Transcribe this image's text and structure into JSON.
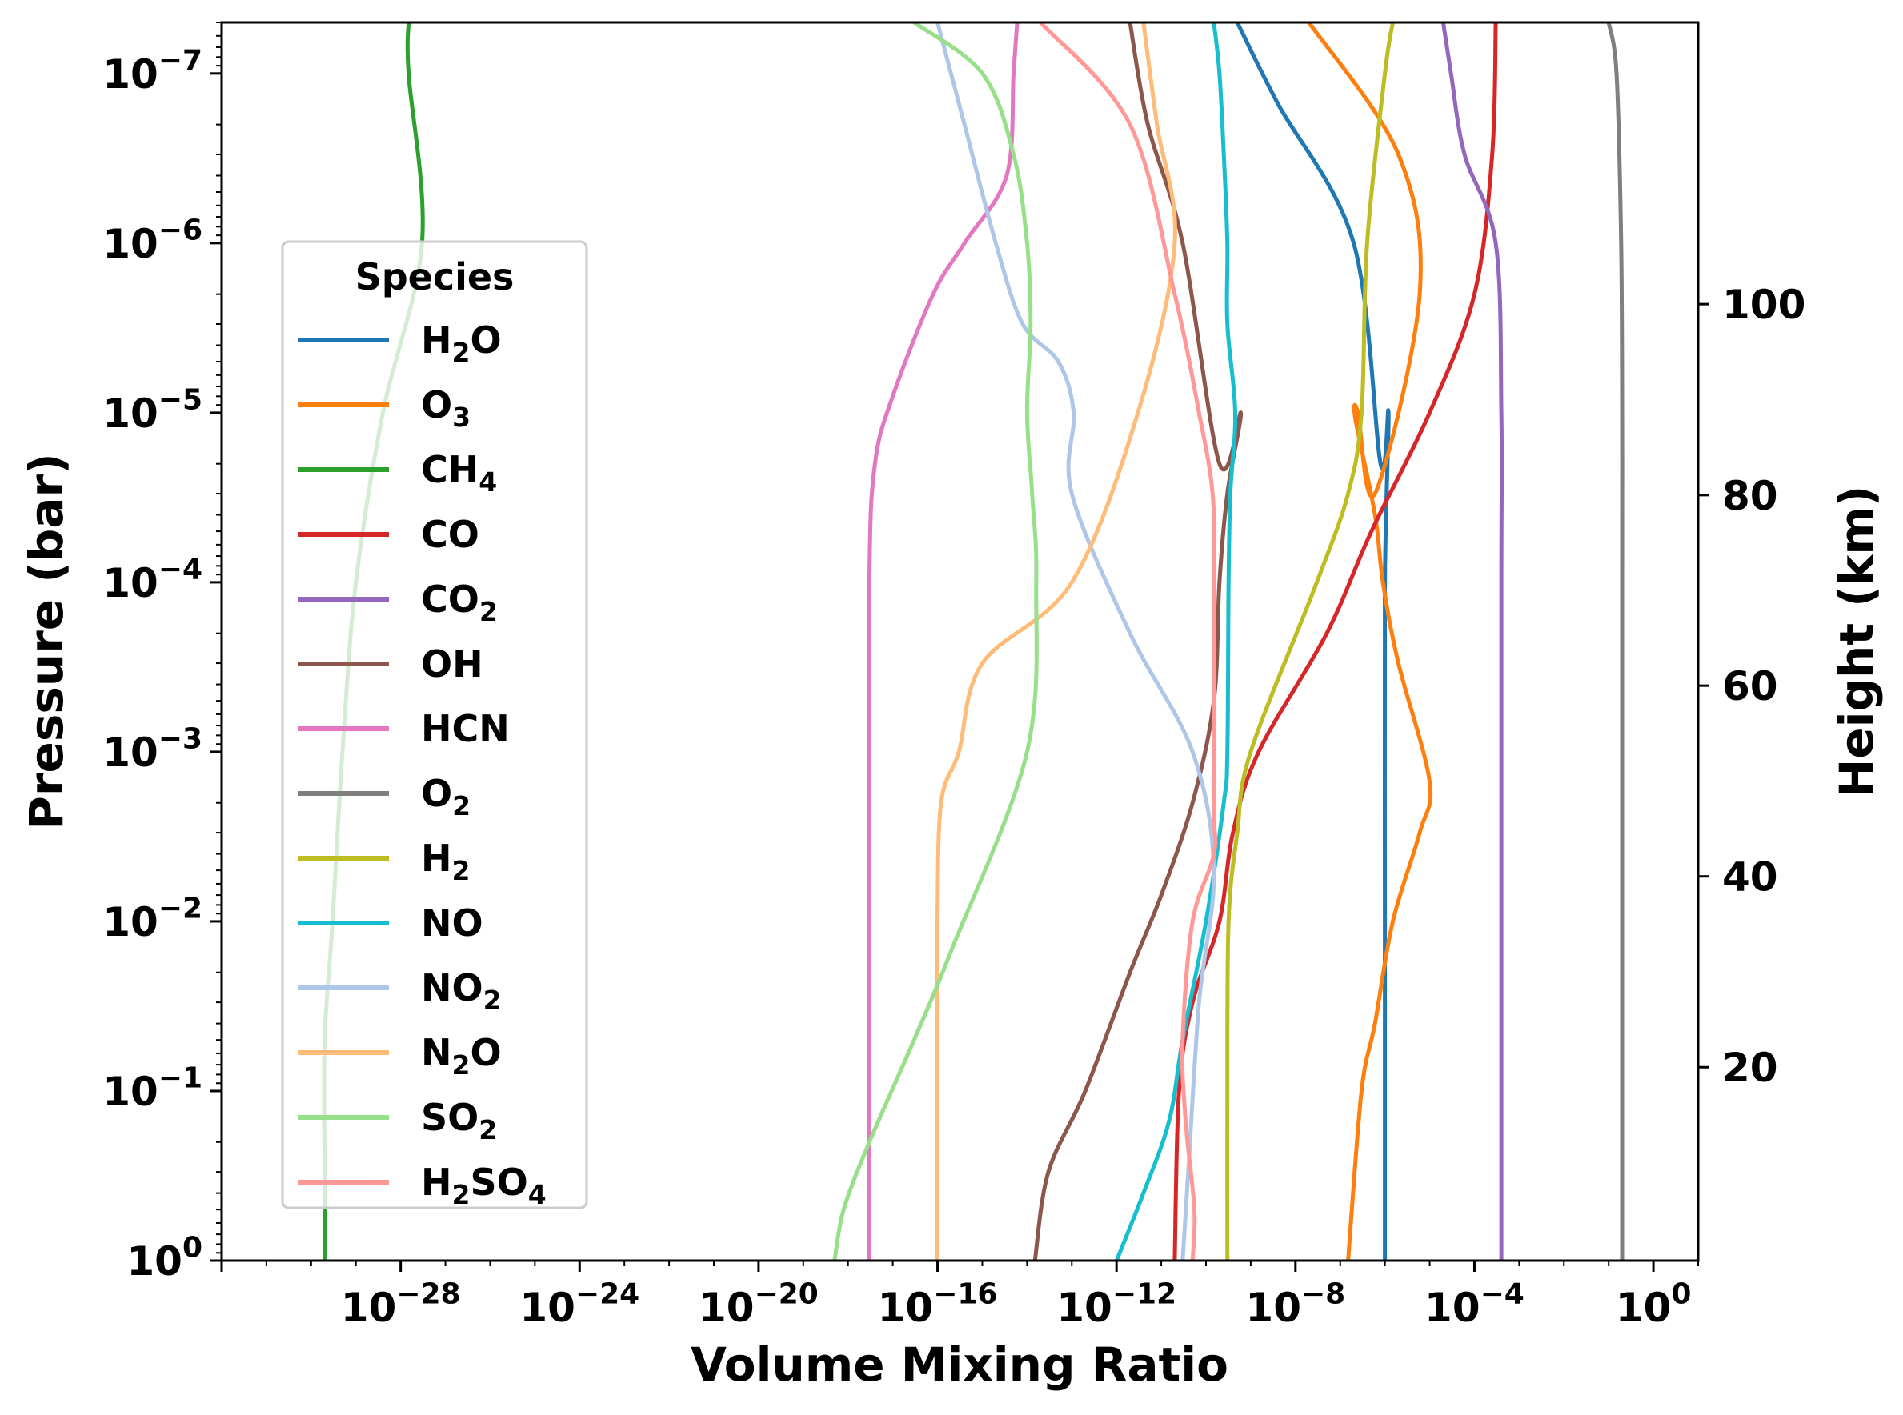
{
  "chart_data": {
    "type": "line",
    "xlabel": "Volume Mixing Ratio",
    "ylabel": "Pressure (bar)",
    "y2label": "Height (km)",
    "xscale": "log",
    "yscale": "log",
    "y_inverted": true,
    "xlim": [
      1e-32,
      10.0
    ],
    "ylim": [
      1,
      5e-08
    ],
    "x_ticks": [
      {
        "value": 1e-28,
        "base": "10",
        "exp": "−28"
      },
      {
        "value": 1e-24,
        "base": "10",
        "exp": "−24"
      },
      {
        "value": 1e-20,
        "base": "10",
        "exp": "−20"
      },
      {
        "value": 1e-16,
        "base": "10",
        "exp": "−16"
      },
      {
        "value": 1e-12,
        "base": "10",
        "exp": "−12"
      },
      {
        "value": 1e-08,
        "base": "10",
        "exp": "−8"
      },
      {
        "value": 0.0001,
        "base": "10",
        "exp": "−4"
      },
      {
        "value": 1,
        "base": "10",
        "exp": "0"
      }
    ],
    "y_ticks": [
      {
        "value": 1e-07,
        "base": "10",
        "exp": "−7"
      },
      {
        "value": 1e-06,
        "base": "10",
        "exp": "−6"
      },
      {
        "value": 1e-05,
        "base": "10",
        "exp": "−5"
      },
      {
        "value": 0.0001,
        "base": "10",
        "exp": "−4"
      },
      {
        "value": 0.001,
        "base": "10",
        "exp": "−3"
      },
      {
        "value": 0.01,
        "base": "10",
        "exp": "−2"
      },
      {
        "value": 0.1,
        "base": "10",
        "exp": "−1"
      },
      {
        "value": 1,
        "base": "10",
        "exp": "0"
      }
    ],
    "y2_ticks": [
      {
        "label": "20",
        "pressure": 0.0724
      },
      {
        "label": "40",
        "pressure": 0.00543
      },
      {
        "label": "60",
        "pressure": 0.000407
      },
      {
        "label": "80",
        "pressure": 3.06e-05
      },
      {
        "label": "100",
        "pressure": 2.29e-06
      }
    ],
    "legend": {
      "title": "Species",
      "placement": "center-left"
    },
    "grid": false,
    "series": [
      {
        "name": "H2O",
        "sub": "2",
        "label": [
          "H",
          "2",
          "O"
        ],
        "color": "#1f77b4",
        "points": [
          [
            1e-06,
            1
          ],
          [
            1e-06,
            0.01
          ],
          [
            1e-06,
            0.0001
          ],
          [
            1.2e-06,
            1e-05
          ],
          [
            8e-07,
            2e-05
          ],
          [
            2e-07,
            1e-06
          ],
          [
            4e-09,
            1.5e-07
          ],
          [
            5e-10,
            5e-08
          ]
        ]
      },
      {
        "name": "O3",
        "label": [
          "O",
          "3"
        ],
        "color": "#ff7f0e",
        "points": [
          [
            1.5e-07,
            1
          ],
          [
            3e-07,
            0.1
          ],
          [
            6e-07,
            0.04
          ],
          [
            1.5e-06,
            0.01
          ],
          [
            6e-06,
            0.003
          ],
          [
            1e-05,
            0.0015
          ],
          [
            2e-06,
            0.0003
          ],
          [
            9e-07,
            0.0001
          ],
          [
            6e-07,
            4e-05
          ],
          [
            2.2e-07,
            1.1e-05
          ],
          [
            2.5e-07,
            1e-05
          ],
          [
            6e-07,
            3e-05
          ],
          [
            6e-06,
            2e-06
          ],
          [
            2e-06,
            3e-07
          ],
          [
            2e-08,
            5e-08
          ]
        ]
      },
      {
        "name": "CH4",
        "label": [
          "CH",
          "4"
        ],
        "color": "#2ca02c",
        "points": [
          [
            2e-30,
            1
          ],
          [
            2e-30,
            0.3
          ],
          [
            2e-30,
            0.05
          ],
          [
            3e-30,
            0.01
          ],
          [
            5e-30,
            0.001
          ],
          [
            1e-29,
            0.0001
          ],
          [
            4e-29,
            1e-05
          ],
          [
            3e-28,
            1e-06
          ],
          [
            1.5e-28,
            1e-07
          ],
          [
            1.5e-28,
            5e-08
          ]
        ]
      },
      {
        "name": "CO",
        "label": [
          "CO"
        ],
        "color": "#d62728",
        "points": [
          [
            2e-11,
            1
          ],
          [
            2.5e-11,
            0.1
          ],
          [
            5e-11,
            0.03
          ],
          [
            2e-10,
            0.01
          ],
          [
            4e-10,
            0.003
          ],
          [
            1.5e-09,
            0.001
          ],
          [
            5e-08,
            0.0002
          ],
          [
            5e-07,
            5e-05
          ],
          [
            1e-05,
            1e-05
          ],
          [
            0.0001,
            2e-06
          ],
          [
            0.00025,
            3e-07
          ],
          [
            0.0003,
            5e-08
          ]
        ]
      },
      {
        "name": "CO2",
        "label": [
          "CO",
          "2"
        ],
        "color": "#9467bd",
        "points": [
          [
            0.0004,
            1
          ],
          [
            0.0004,
            0.01
          ],
          [
            0.0004,
            0.0001
          ],
          [
            0.0004,
            1e-05
          ],
          [
            0.0003,
            1e-06
          ],
          [
            6e-05,
            3e-07
          ],
          [
            3e-05,
            1e-07
          ],
          [
            2e-05,
            5e-08
          ]
        ]
      },
      {
        "name": "OH",
        "label": [
          "OH"
        ],
        "color": "#8c564b",
        "points": [
          [
            1.5e-14,
            1
          ],
          [
            3e-14,
            0.3
          ],
          [
            2e-13,
            0.1
          ],
          [
            2e-12,
            0.02
          ],
          [
            1e-11,
            0.007
          ],
          [
            5e-11,
            0.002
          ],
          [
            1.5e-10,
            0.0005
          ],
          [
            2e-10,
            0.0001
          ],
          [
            3e-10,
            3e-05
          ],
          [
            6e-10,
            1e-05
          ],
          [
            2e-10,
            2e-05
          ],
          [
            3e-11,
            1e-06
          ],
          [
            5e-12,
            2e-07
          ],
          [
            2e-12,
            5e-08
          ]
        ]
      },
      {
        "name": "HCN",
        "label": [
          "HCN"
        ],
        "color": "#e377c2",
        "points": [
          [
            3e-18,
            1
          ],
          [
            3e-18,
            0.01
          ],
          [
            3e-18,
            0.0001
          ],
          [
            4e-18,
            2e-05
          ],
          [
            1e-17,
            8e-06
          ],
          [
            8e-17,
            2e-06
          ],
          [
            4e-16,
            1e-06
          ],
          [
            3.5e-15,
            4e-07
          ],
          [
            5e-15,
            1e-07
          ],
          [
            6e-15,
            5e-08
          ]
        ]
      },
      {
        "name": "O2",
        "label": [
          "O",
          "2"
        ],
        "color": "#7f7f7f",
        "points": [
          [
            0.2,
            1
          ],
          [
            0.2,
            0.01
          ],
          [
            0.2,
            0.0001
          ],
          [
            0.2,
            1e-05
          ],
          [
            0.19,
            1e-06
          ],
          [
            0.15,
            1e-07
          ],
          [
            0.1,
            5e-08
          ]
        ]
      },
      {
        "name": "H2",
        "label": [
          "H",
          "2"
        ],
        "color": "#bcbd22",
        "points": [
          [
            3e-10,
            1
          ],
          [
            3e-10,
            0.1
          ],
          [
            3.2e-10,
            0.01
          ],
          [
            5e-10,
            0.003
          ],
          [
            1e-09,
            0.001
          ],
          [
            3e-08,
            0.0001
          ],
          [
            1.5e-07,
            3e-05
          ],
          [
            3e-07,
            1e-05
          ],
          [
            4e-07,
            1e-06
          ],
          [
            1e-06,
            1e-07
          ],
          [
            1.5e-06,
            5e-08
          ]
        ]
      },
      {
        "name": "NO",
        "label": [
          "NO"
        ],
        "color": "#17becf",
        "points": [
          [
            1e-12,
            1
          ],
          [
            4e-12,
            0.4
          ],
          [
            1.5e-11,
            0.15
          ],
          [
            3e-11,
            0.05
          ],
          [
            1e-10,
            0.01
          ],
          [
            2.5e-10,
            0.002
          ],
          [
            3e-10,
            0.001
          ],
          [
            3.2e-10,
            0.0001
          ],
          [
            3.5e-10,
            3e-05
          ],
          [
            4.5e-10,
            1e-05
          ],
          [
            3e-10,
            3e-06
          ],
          [
            3e-10,
            1e-06
          ],
          [
            2.5e-10,
            3e-07
          ],
          [
            2e-10,
            1e-07
          ],
          [
            1.5e-10,
            5e-08
          ]
        ]
      },
      {
        "name": "NO2",
        "label": [
          "NO",
          "2"
        ],
        "color": "#aec7e8",
        "points": [
          [
            3e-11,
            1
          ],
          [
            4e-11,
            0.3
          ],
          [
            7e-11,
            0.03
          ],
          [
            1.5e-10,
            0.005
          ],
          [
            5e-11,
            0.001
          ],
          [
            2e-12,
            0.0002
          ],
          [
            1e-13,
            3e-05
          ],
          [
            1.1e-13,
            1e-05
          ],
          [
            5e-14,
            5e-06
          ],
          [
            8e-15,
            3e-06
          ],
          [
            2e-15,
            1e-06
          ],
          [
            4e-16,
            2e-07
          ],
          [
            1e-16,
            5e-08
          ]
        ]
      },
      {
        "name": "N2O",
        "label": [
          "N",
          "2",
          "O"
        ],
        "color": "#ffbb78",
        "points": [
          [
            1e-16,
            1
          ],
          [
            1e-16,
            0.1
          ],
          [
            1e-16,
            0.01
          ],
          [
            1.2e-16,
            0.002
          ],
          [
            3e-16,
            0.001
          ],
          [
            1e-15,
            0.0003
          ],
          [
            1e-13,
            0.0001
          ],
          [
            3e-12,
            1e-05
          ],
          [
            2e-11,
            1e-06
          ],
          [
            8e-12,
            2e-07
          ],
          [
            4e-12,
            5e-08
          ]
        ]
      },
      {
        "name": "SO2",
        "label": [
          "SO",
          "2"
        ],
        "color": "#98df8a",
        "points": [
          [
            5e-19,
            1
          ],
          [
            8e-19,
            0.5
          ],
          [
            3e-18,
            0.2
          ],
          [
            3e-17,
            0.05
          ],
          [
            2e-16,
            0.015
          ],
          [
            1e-14,
            0.001
          ],
          [
            1.6e-14,
            0.0001
          ],
          [
            1.3e-14,
            3e-05
          ],
          [
            1e-14,
            1e-05
          ],
          [
            1.2e-14,
            3e-06
          ],
          [
            1e-14,
            1e-06
          ],
          [
            5e-15,
            3e-07
          ],
          [
            1e-15,
            1e-07
          ],
          [
            3e-17,
            5e-08
          ]
        ]
      },
      {
        "name": "H2SO4",
        "label": [
          "H",
          "2",
          "SO",
          "4"
        ],
        "color": "#ff9896",
        "points": [
          [
            5e-11,
            1
          ],
          [
            5.5e-11,
            0.5
          ],
          [
            3.5e-11,
            0.15
          ],
          [
            3e-11,
            0.05
          ],
          [
            5e-11,
            0.01
          ],
          [
            1.5e-10,
            0.004
          ],
          [
            1.5e-10,
            0.002
          ],
          [
            1.5e-10,
            0.0001
          ],
          [
            1.4e-10,
            3e-05
          ],
          [
            7e-11,
            1e-05
          ],
          [
            2e-11,
            2e-06
          ],
          [
            2e-12,
            2e-07
          ],
          [
            2e-14,
            5e-08
          ]
        ]
      }
    ]
  }
}
